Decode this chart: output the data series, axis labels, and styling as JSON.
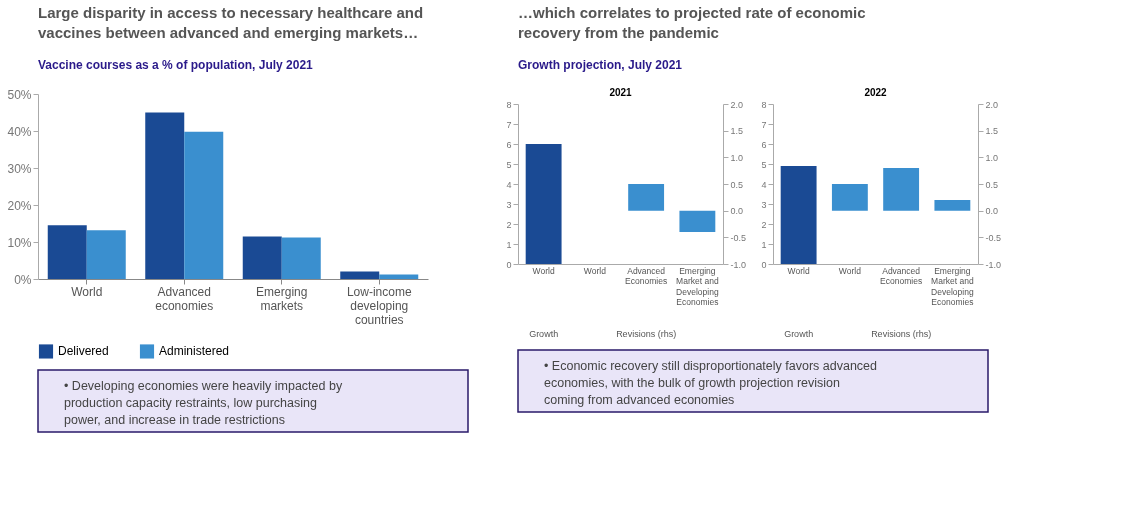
{
  "chart_data": [
    {
      "type": "bar",
      "title": "Large disparity in access to necessary healthcare and vaccines between advanced and emerging markets…",
      "subtitle": "Vaccine courses as a % of population, July 2021",
      "categories": [
        "World",
        "Advanced economies",
        "Emerging markets",
        "Low-income developing countries"
      ],
      "series": [
        {
          "name": "Delivered",
          "color": "#1a4a94",
          "values": [
            14.5,
            45,
            11.5,
            2.0
          ]
        },
        {
          "name": "Administered",
          "color": "#3a8fcf",
          "values": [
            13.2,
            39.8,
            11.2,
            1.2
          ]
        }
      ],
      "ylim": [
        0,
        50
      ],
      "yticks": [
        {
          "value": 0,
          "label": "0%"
        },
        {
          "value": 10,
          "label": "10%"
        },
        {
          "value": 20,
          "label": "20%"
        },
        {
          "value": 30,
          "label": "30%"
        },
        {
          "value": 40,
          "label": "40%"
        },
        {
          "value": 50,
          "label": "50%"
        }
      ],
      "grid": false,
      "legend": "bottom",
      "annotations": [
        "• Developing economies were heavily impacted by production capacity restraints, low purchasing power, and increase in trade restrictions"
      ]
    },
    {
      "type": "other",
      "title": "…which correlates to projected rate of economic recovery from the pandemic",
      "subtitle": "Growth projection, July 2021",
      "annotations": [
        "• Economic recovery still disproportionately favors advanced economies, with the bulk of growth projection revision coming from advanced economies"
      ]
    },
    {
      "type": "bar",
      "title": "2021",
      "categories": [
        "World",
        "World",
        "Advanced Economies",
        "Emerging Market and Developing Economies"
      ],
      "series": [
        {
          "color": "#1a4a94",
          "values": [
            6.0,
            null,
            null,
            null
          ]
        },
        {
          "color": "#3a8fcf",
          "axis": "y2",
          "values": [
            null,
            0,
            0.5,
            -0.4
          ]
        }
      ],
      "ylim": [
        0,
        8
      ],
      "yticks": [
        0,
        1,
        2,
        3,
        4,
        5,
        6,
        7,
        8
      ],
      "y2lim": [
        -1,
        2
      ],
      "y2ticks": [
        {
          "value": -1,
          "label": "-1.0"
        },
        {
          "value": -0.5,
          "label": "-0.5"
        },
        {
          "value": 0,
          "label": "0.0"
        },
        {
          "value": 0.5,
          "label": "0.5"
        },
        {
          "value": 1,
          "label": "1.0"
        },
        {
          "value": 1.5,
          "label": "1.5"
        },
        {
          "value": 2,
          "label": "2.0"
        }
      ],
      "grid": false,
      "annotations": [
        "Growth",
        "Revisions (rhs)"
      ]
    },
    {
      "type": "bar",
      "title": "2022",
      "categories": [
        "World",
        "World",
        "Advanced Economies",
        "Emerging Market and Developing Economies"
      ],
      "series": [
        {
          "color": "#1a4a94",
          "values": [
            4.9,
            null,
            null,
            null
          ]
        },
        {
          "color": "#3a8fcf",
          "axis": "y2",
          "values": [
            null,
            0.5,
            0.8,
            0.2
          ]
        }
      ],
      "ylim": [
        0,
        8
      ],
      "yticks": [
        0,
        1,
        2,
        3,
        4,
        5,
        6,
        7,
        8
      ],
      "y2lim": [
        -1,
        2
      ],
      "y2ticks": [
        {
          "value": -1,
          "label": "-1.0"
        },
        {
          "value": -0.5,
          "label": "-0.5"
        },
        {
          "value": 0,
          "label": "0.0"
        },
        {
          "value": 0.5,
          "label": "0.5"
        },
        {
          "value": 1,
          "label": "1.0"
        },
        {
          "value": 1.5,
          "label": "1.5"
        },
        {
          "value": 2,
          "label": "2.0"
        }
      ],
      "grid": false,
      "annotations": [
        "Growth",
        "Revisions (rhs)"
      ]
    }
  ]
}
